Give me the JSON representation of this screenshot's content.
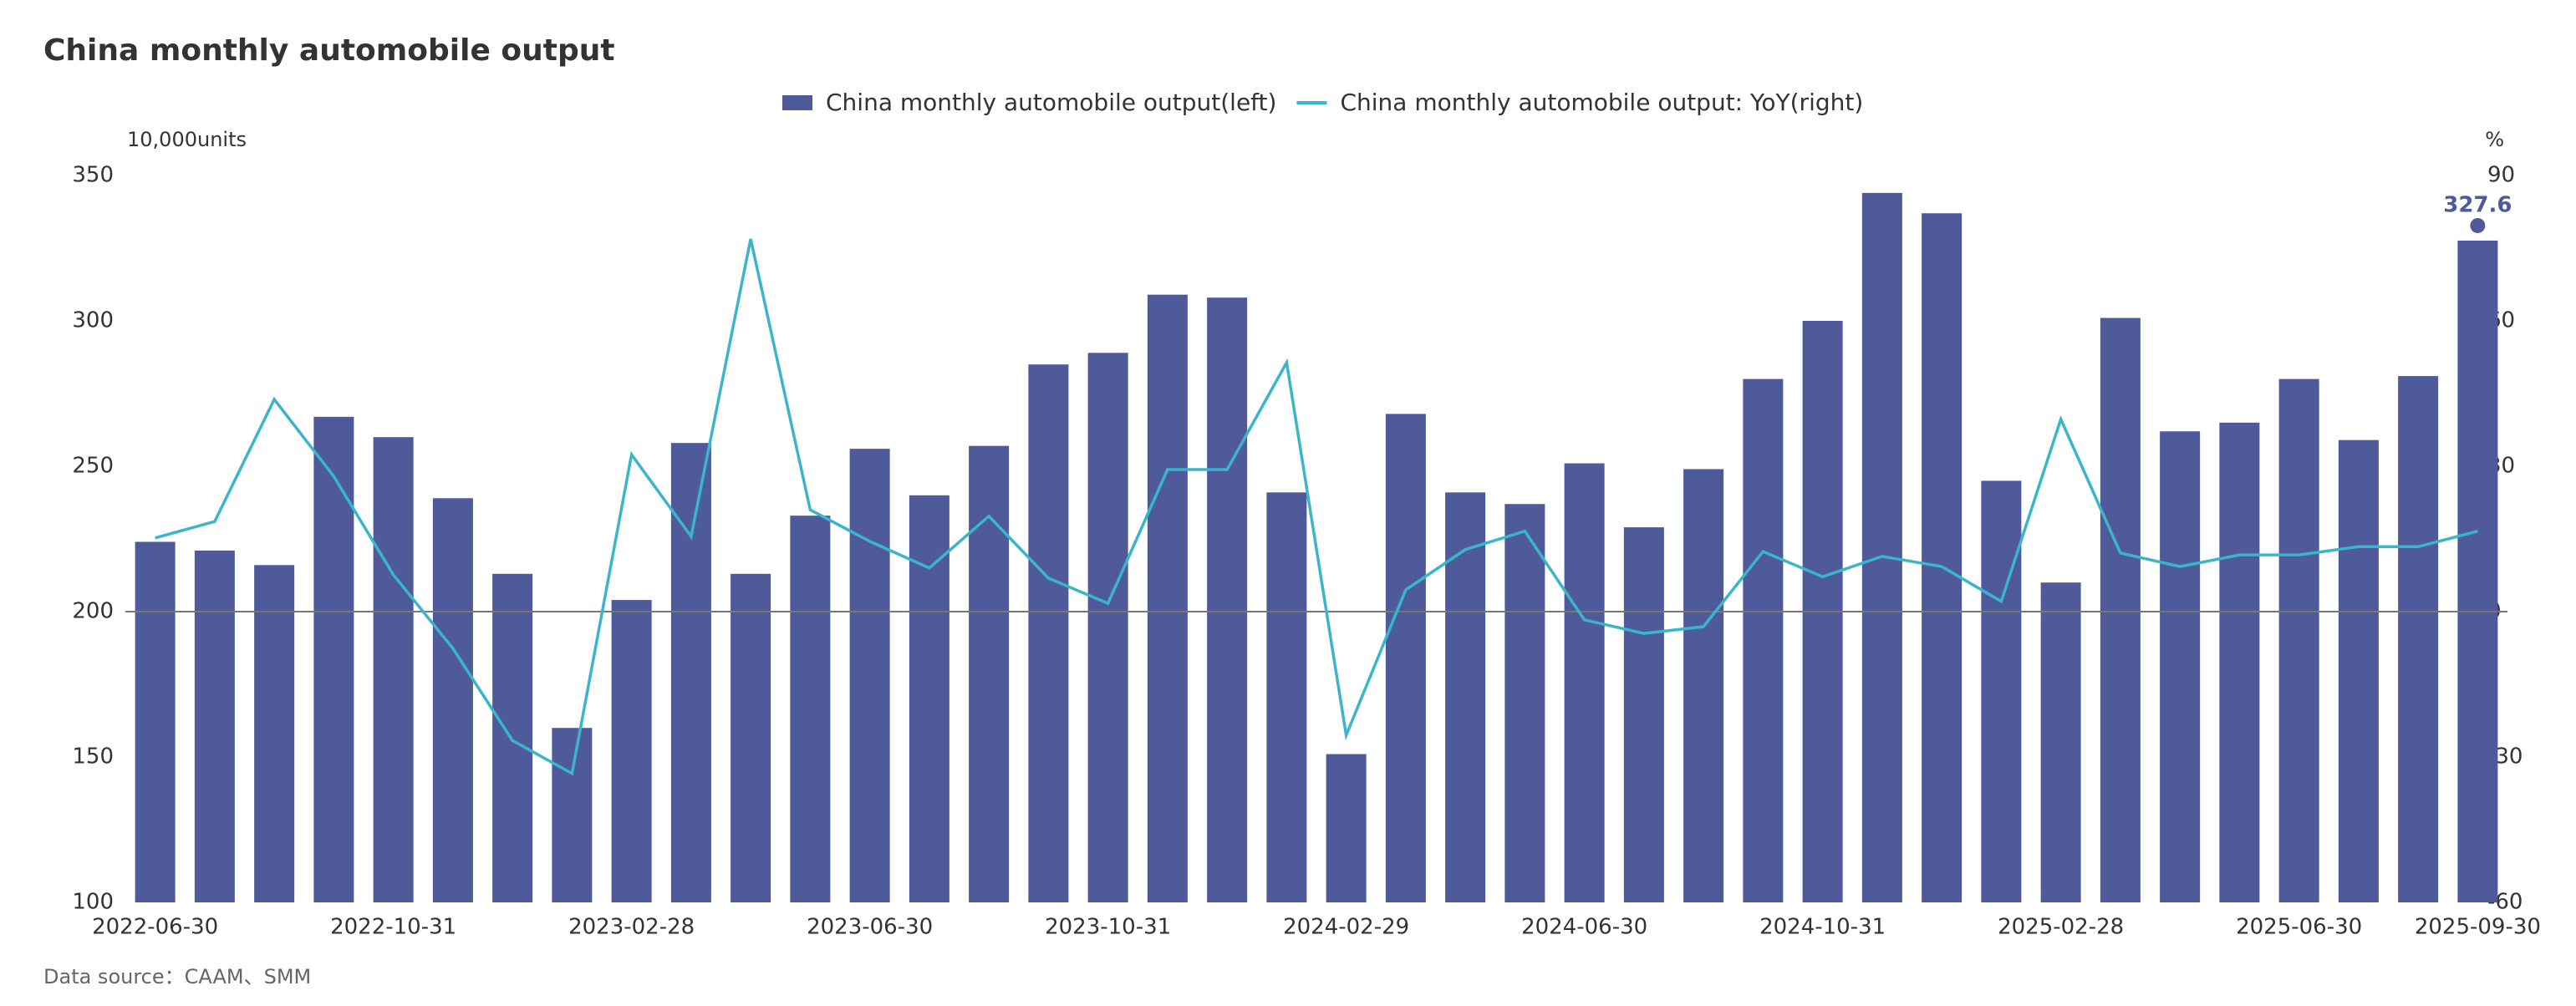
{
  "chart_data": {
    "type": "bar-line",
    "title": "China monthly automobile output",
    "y_label": "10,000units",
    "y2_label": "%",
    "footnote": "Data source：CAAM、SMM",
    "categories": [
      "2022-06-30",
      null,
      null,
      null,
      "2022-10-31",
      null,
      null,
      null,
      "2023-02-28",
      null,
      null,
      null,
      "2023-06-30",
      null,
      null,
      null,
      "2023-10-31",
      null,
      null,
      null,
      "2024-02-29",
      null,
      null,
      null,
      "2024-06-30",
      null,
      null,
      null,
      "2024-10-31",
      null,
      null,
      null,
      "2025-02-28",
      null,
      null,
      null,
      "2025-06-30",
      null,
      null,
      "2025-09-30"
    ],
    "series": [
      {
        "name": "China monthly automobile output(left)",
        "type": "bar",
        "color": "#4e5a99",
        "axis": "y",
        "values": [
          224,
          221,
          216,
          267,
          260,
          239,
          213,
          160,
          204,
          258,
          213,
          233,
          256,
          240,
          257,
          285,
          289,
          309,
          308,
          241,
          151,
          268,
          241,
          237,
          251,
          229,
          249,
          280,
          300,
          344,
          337,
          245,
          210,
          301,
          262,
          265,
          280,
          259,
          281,
          327.6
        ]
      },
      {
        "name": "China monthly automobile output: YoY(right)",
        "type": "line",
        "color": "#3ab5c9",
        "axis": "y2",
        "values": [
          15.2,
          18.6,
          43.8,
          27.9,
          7.6,
          -7.6,
          -26.6,
          -33.4,
          32.4,
          15.5,
          76.9,
          21,
          14.5,
          9,
          19.7,
          6.9,
          1.7,
          29.3,
          29.3,
          51.4,
          -25.5,
          4.5,
          12.8,
          16.6,
          -1.7,
          -4.5,
          -3.1,
          12.4,
          7.2,
          11.4,
          9.3,
          2.1,
          39.7,
          12.1,
          9.3,
          11.7,
          11.7,
          13.4,
          13.4,
          16.6
        ]
      }
    ],
    "labeled_point": 39,
    "ylim": [
      100,
      350
    ],
    "yticks": [
      100,
      150,
      200,
      250,
      300,
      350
    ],
    "y2lim": [
      -60,
      90
    ],
    "y2ticks": [
      -60,
      -30,
      0,
      30,
      60,
      90
    ],
    "zero_line": 2,
    "grid": false
  }
}
